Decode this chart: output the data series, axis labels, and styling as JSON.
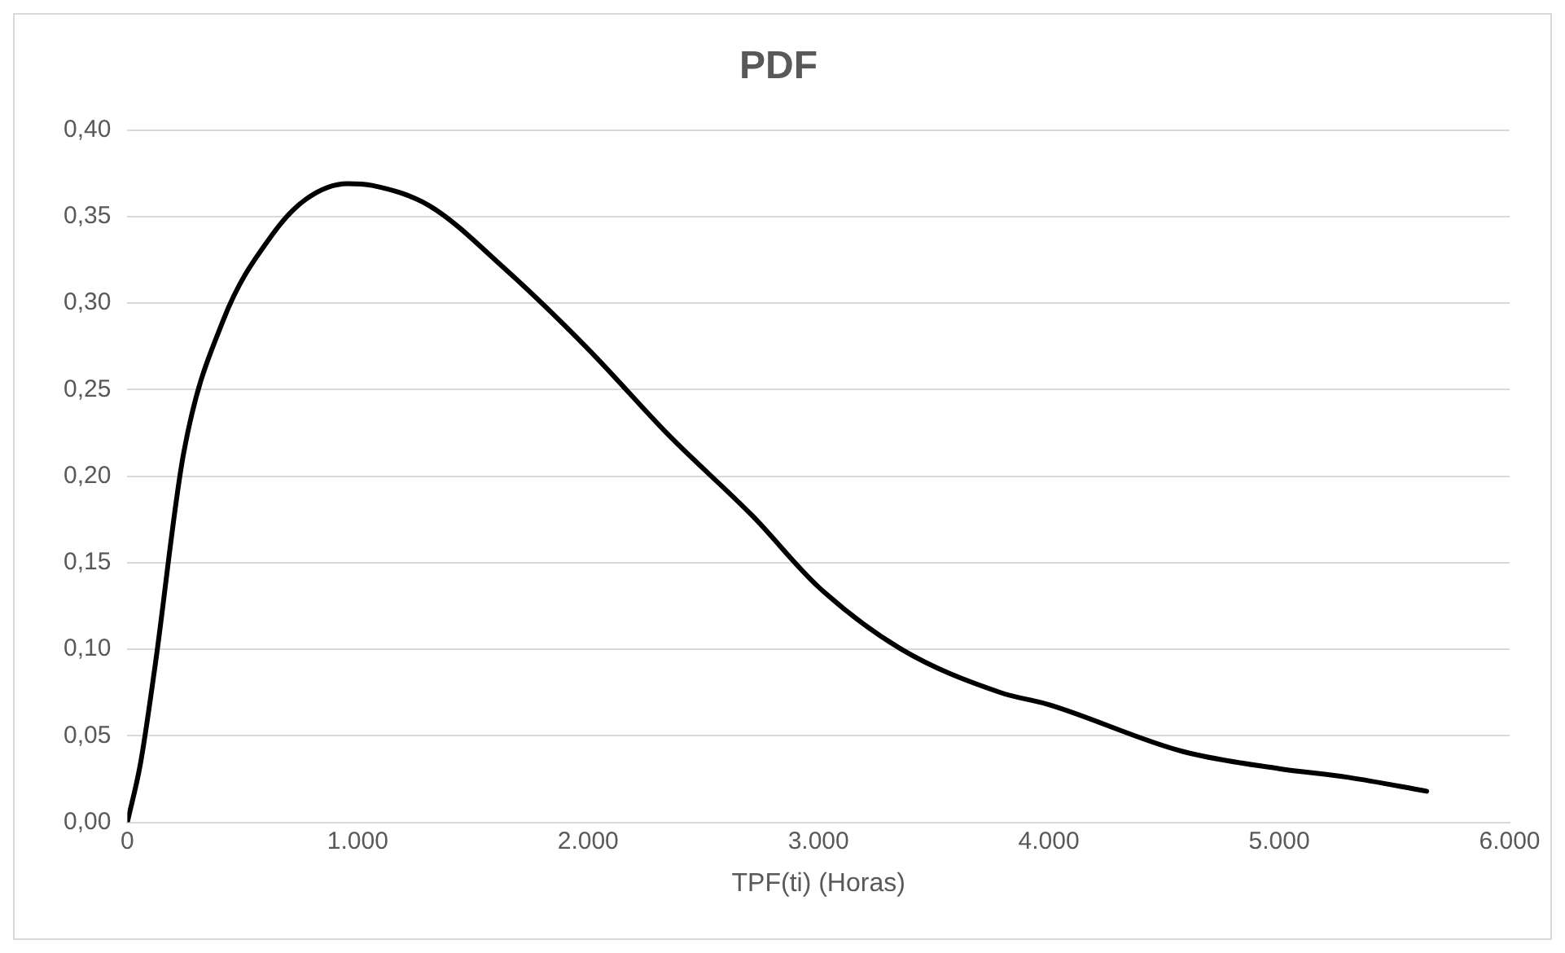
{
  "chart_data": {
    "type": "line",
    "title": "PDF",
    "xlabel": "TPF(ti) (Horas)",
    "x": [
      0,
      57,
      120,
      244,
      416,
      632,
      775,
      955,
      1062,
      1314,
      1637,
      1996,
      2355,
      2714,
      3000,
      3360,
      3790,
      4000,
      4580,
      5000,
      5300,
      5640
    ],
    "series": [
      {
        "color": "#000000",
        "values": [
          0,
          0.034,
          0.09,
          0.213,
          0.29,
          0.34,
          0.36,
          0.369,
          0.368,
          0.356,
          0.32,
          0.274,
          0.223,
          0.177,
          0.136,
          0.1,
          0.075,
          0.068,
          0.041,
          0.031,
          0.026,
          0.018
        ]
      }
    ],
    "xlim": [
      0,
      6000
    ],
    "xticks": [
      {
        "value": 0,
        "label": "0"
      },
      {
        "value": 1000,
        "label": "1.000"
      },
      {
        "value": 2000,
        "label": "2.000"
      },
      {
        "value": 3000,
        "label": "3.000"
      },
      {
        "value": 4000,
        "label": "4.000"
      },
      {
        "value": 5000,
        "label": "5.000"
      },
      {
        "value": 6000,
        "label": "6.000"
      }
    ],
    "ylim": [
      0,
      0.4
    ],
    "yticks": [
      {
        "value": 0,
        "label": "0,00"
      },
      {
        "value": 0.05,
        "label": "0,05"
      },
      {
        "value": 0.1,
        "label": "0,10"
      },
      {
        "value": 0.15,
        "label": "0,15"
      },
      {
        "value": 0.2,
        "label": "0,20"
      },
      {
        "value": 0.25,
        "label": "0,25"
      },
      {
        "value": 0.3,
        "label": "0,30"
      },
      {
        "value": 0.35,
        "label": "0,35"
      },
      {
        "value": 0.4,
        "label": "0,40"
      }
    ],
    "grid": "y",
    "legend": false,
    "marker": "none",
    "line_style": "solid"
  }
}
